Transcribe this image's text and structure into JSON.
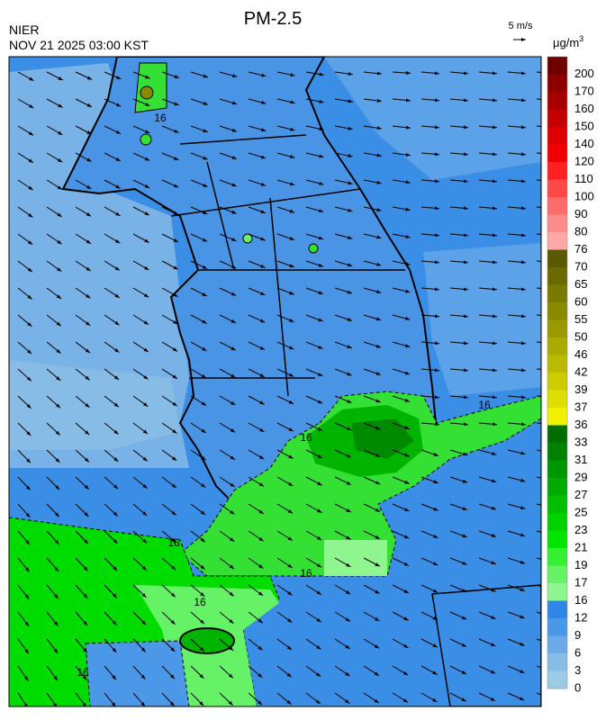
{
  "header": {
    "title": "PM-2.5",
    "source": "NIER",
    "time": "NOV 21 2025 03:00 KST",
    "wind_scale": "5 m/s",
    "unit": "μg/m",
    "unit_exponent": "3"
  },
  "contour_labels": [
    "16",
    "16",
    "16",
    "16",
    "16",
    "16",
    "16"
  ],
  "colorbar": {
    "levels": [
      {
        "value": 200,
        "color": "#6e0000"
      },
      {
        "value": 170,
        "color": "#8c0000"
      },
      {
        "value": 160,
        "color": "#a80000"
      },
      {
        "value": 150,
        "color": "#c40000"
      },
      {
        "value": 140,
        "color": "#dc0000"
      },
      {
        "value": 120,
        "color": "#f00000"
      },
      {
        "value": 110,
        "color": "#ff2020"
      },
      {
        "value": 100,
        "color": "#ff4848"
      },
      {
        "value": 90,
        "color": "#ff6a6a"
      },
      {
        "value": 80,
        "color": "#ff8c8c"
      },
      {
        "value": 76,
        "color": "#ffa8a8"
      },
      {
        "value": 70,
        "color": "#5a5a00"
      },
      {
        "value": 65,
        "color": "#6a6a00"
      },
      {
        "value": 60,
        "color": "#7a7a00"
      },
      {
        "value": 55,
        "color": "#8a8a00"
      },
      {
        "value": 50,
        "color": "#9a9a00"
      },
      {
        "value": 46,
        "color": "#aaaa00"
      },
      {
        "value": 42,
        "color": "#baba00"
      },
      {
        "value": 39,
        "color": "#cccc00"
      },
      {
        "value": 37,
        "color": "#dede00"
      },
      {
        "value": 36,
        "color": "#f2f200"
      },
      {
        "value": 33,
        "color": "#006e00"
      },
      {
        "value": 31,
        "color": "#008200"
      },
      {
        "value": 29,
        "color": "#009600"
      },
      {
        "value": 27,
        "color": "#00aa00"
      },
      {
        "value": 25,
        "color": "#00be00"
      },
      {
        "value": 23,
        "color": "#00d200"
      },
      {
        "value": 21,
        "color": "#00e600"
      },
      {
        "value": 19,
        "color": "#33f033"
      },
      {
        "value": 17,
        "color": "#66f266"
      },
      {
        "value": 16,
        "color": "#8ff58f"
      },
      {
        "value": 12,
        "color": "#2f86e6"
      },
      {
        "value": 9,
        "color": "#4c98e8"
      },
      {
        "value": 6,
        "color": "#6aaae8"
      },
      {
        "value": 3,
        "color": "#86bce6"
      },
      {
        "value": 0,
        "color": "#9ccbe6"
      }
    ]
  }
}
